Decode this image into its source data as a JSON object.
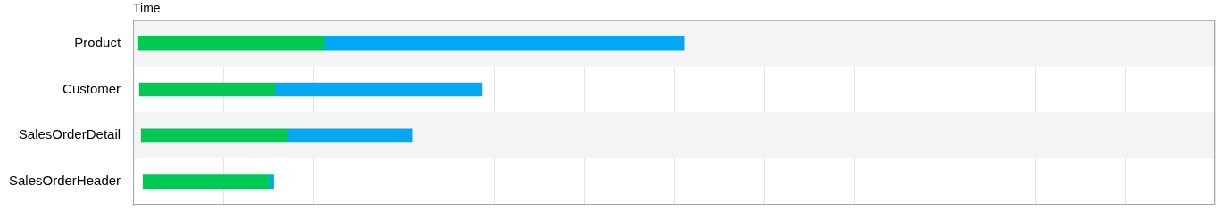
{
  "chart_data": {
    "type": "bar",
    "orientation": "horizontal",
    "stacked": true,
    "x_label": "Time",
    "categories": [
      "Product",
      "Customer",
      "SalesOrderDetail",
      "SalesOrderHeader"
    ],
    "start": [
      0.06,
      0.07,
      0.09,
      0.11
    ],
    "series": [
      {
        "color": "#00c853",
        "values": [
          2.06,
          1.51,
          1.62,
          1.39
        ]
      },
      {
        "color": "#03a9f4",
        "values": [
          3.99,
          2.29,
          1.39,
          0.06
        ]
      }
    ],
    "xlim": [
      0,
      12
    ],
    "xticks": [
      0,
      1,
      2,
      3,
      4,
      5,
      6,
      7,
      8,
      9,
      10,
      11,
      12
    ],
    "grid": true,
    "tick_labels": "y"
  }
}
